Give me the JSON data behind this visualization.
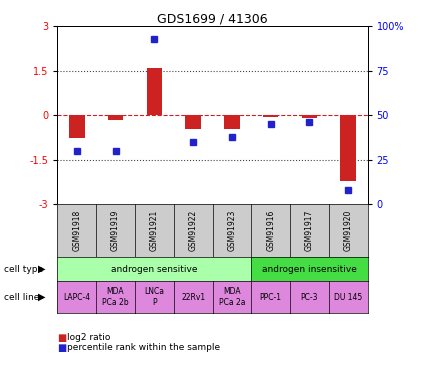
{
  "title": "GDS1699 / 41306",
  "samples": [
    "GSM91918",
    "GSM91919",
    "GSM91921",
    "GSM91922",
    "GSM91923",
    "GSM91916",
    "GSM91917",
    "GSM91920"
  ],
  "log2_ratio": [
    -0.75,
    -0.15,
    1.6,
    -0.45,
    -0.45,
    -0.05,
    -0.1,
    -2.2
  ],
  "percentile_rank": [
    30,
    30,
    93,
    35,
    38,
    45,
    46,
    8
  ],
  "cell_type_groups": [
    {
      "label": "androgen sensitive",
      "start": 0,
      "end": 5,
      "color": "#aaffaa"
    },
    {
      "label": "androgen insensitive",
      "start": 5,
      "end": 8,
      "color": "#44dd44"
    }
  ],
  "cell_lines": [
    "LAPC-4",
    "MDA\nPCa 2b",
    "LNCa\nP",
    "22Rv1",
    "MDA\nPCa 2a",
    "PPC-1",
    "PC-3",
    "DU 145"
  ],
  "cell_line_color": "#dd88dd",
  "gsm_bg_color": "#cccccc",
  "ylim": [
    -3,
    3
  ],
  "yticks_left": [
    -3,
    -1.5,
    0,
    1.5,
    3
  ],
  "yticks_right": [
    0,
    25,
    50,
    75,
    100
  ],
  "bar_color": "#cc2222",
  "dot_color": "#2222cc",
  "hline_color": "#cc2222",
  "dotted_color": "#444444",
  "legend_bar_label": "log2 ratio",
  "legend_dot_label": "percentile rank within the sample"
}
